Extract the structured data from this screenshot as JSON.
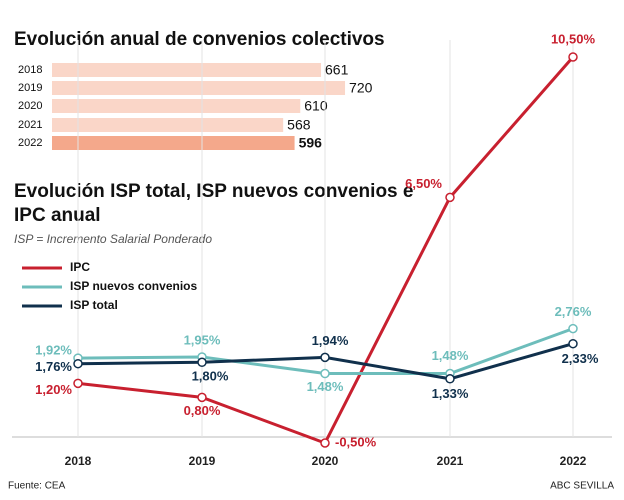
{
  "chart_data": [
    {
      "type": "hbar",
      "title": "Evolución anual de convenios colectivos",
      "categories": [
        "2018",
        "2019",
        "2020",
        "2021",
        "2022"
      ],
      "values": [
        661,
        720,
        610,
        568,
        596
      ],
      "colors": [
        "#fad6c8",
        "#fad6c8",
        "#fad6c8",
        "#fad6c8",
        "#f4a88b"
      ]
    },
    {
      "type": "line",
      "title": "Evolución ISP total, ISP nuevos convenios e IPC anual",
      "subtitle": "ISP = Incremento Salarial Ponderado",
      "categories": [
        "2018",
        "2019",
        "2020",
        "2021",
        "2022"
      ],
      "ylim": [
        -0.5,
        10.5
      ],
      "grid": "x",
      "legend": "top-left",
      "series": [
        {
          "name": "IPC",
          "color": "#c8202f",
          "values": [
            1.2,
            0.8,
            -0.5,
            6.5,
            10.5
          ],
          "value_labels": [
            "1,20%",
            "0,80%",
            "-0,50%",
            "6,50%",
            "10,50%"
          ]
        },
        {
          "name": "ISP nuevos convenios",
          "color": "#6dbdbb",
          "values": [
            1.92,
            1.95,
            1.48,
            1.48,
            2.76
          ],
          "value_labels": [
            "1,92%",
            "1,95%",
            "1,48%",
            "1,48%",
            "2,76%"
          ]
        },
        {
          "name": "ISP total",
          "color": "#10304c",
          "values": [
            1.76,
            1.8,
            1.94,
            1.33,
            2.33
          ],
          "value_labels": [
            "1,76%",
            "1,80%",
            "1,94%",
            "1,33%",
            "2,33%"
          ]
        }
      ]
    }
  ],
  "source": "Fuente: CEA",
  "credit": "ABC SEVILLA"
}
